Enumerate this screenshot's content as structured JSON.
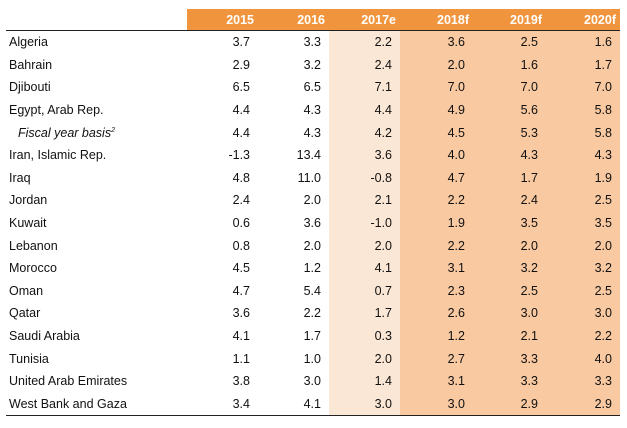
{
  "columns": [
    "2015",
    "2016",
    "2017e",
    "2018f",
    "2019f",
    "2020f"
  ],
  "rows": [
    {
      "country": "Algeria",
      "values": [
        "3.7",
        "3.3",
        "2.2",
        "3.6",
        "2.5",
        "1.6"
      ]
    },
    {
      "country": "Bahrain",
      "values": [
        "2.9",
        "3.2",
        "2.4",
        "2.0",
        "1.6",
        "1.7"
      ]
    },
    {
      "country": "Djibouti",
      "values": [
        "6.5",
        "6.5",
        "7.1",
        "7.0",
        "7.0",
        "7.0"
      ]
    },
    {
      "country": "Egypt, Arab Rep.",
      "values": [
        "4.4",
        "4.3",
        "4.4",
        "4.9",
        "5.6",
        "5.8"
      ]
    },
    {
      "country": "Fiscal year basis",
      "footnote": "2",
      "values": [
        "4.4",
        "4.3",
        "4.2",
        "4.5",
        "5.3",
        "5.8"
      ]
    },
    {
      "country": "Iran, Islamic Rep.",
      "values": [
        "-1.3",
        "13.4",
        "3.6",
        "4.0",
        "4.3",
        "4.3"
      ]
    },
    {
      "country": "Iraq",
      "values": [
        "4.8",
        "11.0",
        "-0.8",
        "4.7",
        "1.7",
        "1.9"
      ]
    },
    {
      "country": "Jordan",
      "values": [
        "2.4",
        "2.0",
        "2.1",
        "2.2",
        "2.4",
        "2.5"
      ]
    },
    {
      "country": "Kuwait",
      "values": [
        "0.6",
        "3.6",
        "-1.0",
        "1.9",
        "3.5",
        "3.5"
      ]
    },
    {
      "country": "Lebanon",
      "values": [
        "0.8",
        "2.0",
        "2.0",
        "2.2",
        "2.0",
        "2.0"
      ]
    },
    {
      "country": "Morocco",
      "values": [
        "4.5",
        "1.2",
        "4.1",
        "3.1",
        "3.2",
        "3.2"
      ]
    },
    {
      "country": "Oman",
      "values": [
        "4.7",
        "5.4",
        "0.7",
        "2.3",
        "2.5",
        "2.5"
      ]
    },
    {
      "country": "Qatar",
      "values": [
        "3.6",
        "2.2",
        "1.7",
        "2.6",
        "3.0",
        "3.0"
      ]
    },
    {
      "country": "Saudi Arabia",
      "values": [
        "4.1",
        "1.7",
        "0.3",
        "1.2",
        "2.1",
        "2.2"
      ]
    },
    {
      "country": "Tunisia",
      "values": [
        "1.1",
        "1.0",
        "2.0",
        "2.7",
        "3.3",
        "4.0"
      ]
    },
    {
      "country": "United Arab Emirates",
      "values": [
        "3.8",
        "3.0",
        "1.4",
        "3.1",
        "3.3",
        "3.3"
      ]
    },
    {
      "country": "West Bank and Gaza",
      "values": [
        "3.4",
        "4.1",
        "3.0",
        "3.0",
        "2.9",
        "2.9"
      ]
    }
  ],
  "colors": {
    "header_bg": "#f0953e",
    "estimate_bg": "#fbe7d5",
    "forecast_bg": "#f9c9a1"
  }
}
